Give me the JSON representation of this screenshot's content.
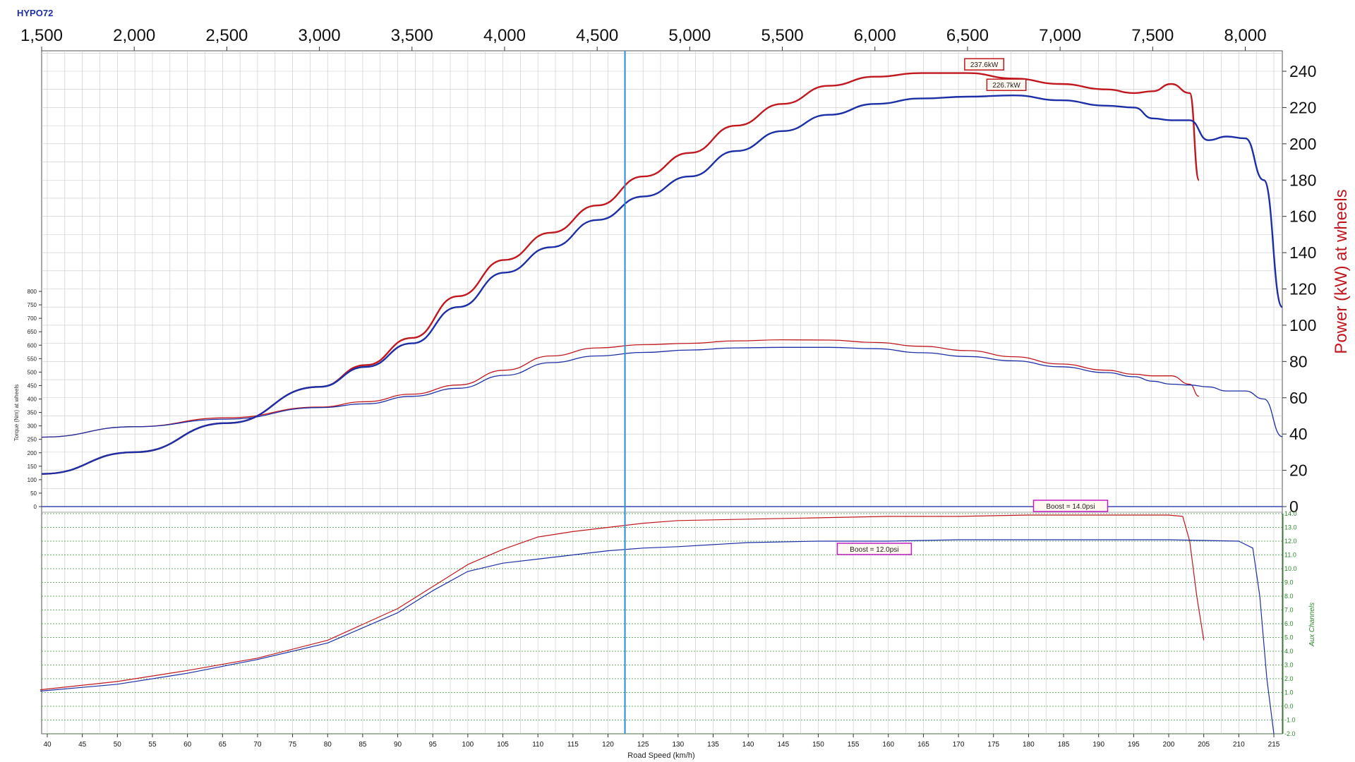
{
  "title": "HYPO72",
  "colors": {
    "run1_red": "#c0181e",
    "run2_blue": "#1c2fa6",
    "cursor": "#2f8fd6",
    "grid": "#c8c8c8",
    "aux_grid": "#3a9a3a",
    "aux_text": "#2a8a2a",
    "peak_red_border": "#c0181e",
    "boost_border": "#c01ec0"
  },
  "chart_data": [
    {
      "type": "line",
      "name": "power",
      "ylabel": "Power (kW) at wheels",
      "ylim": [
        0,
        250
      ],
      "y_ticks": [
        "0",
        "20",
        "40",
        "60",
        "80",
        "100",
        "120",
        "140",
        "160",
        "180",
        "200",
        "220",
        "240"
      ],
      "x_axis_top_label": "",
      "x_ticks_top": [
        "1,500",
        "2,000",
        "2,500",
        "3,000",
        "3,500",
        "4,000",
        "4,500",
        "5,000",
        "5,500",
        "6,000",
        "6,500",
        "7,000",
        "7,500",
        "8,000"
      ],
      "xlim": [
        1500,
        8200
      ],
      "grid": true,
      "series": [
        {
          "color_key": "run1_red",
          "x": [
            1500,
            2000,
            2500,
            3000,
            3250,
            3500,
            3750,
            4000,
            4250,
            4500,
            4750,
            5000,
            5250,
            5500,
            5750,
            6000,
            6250,
            6500,
            6750,
            7000,
            7250,
            7400,
            7500,
            7600,
            7700,
            7750
          ],
          "values": [
            18,
            30,
            46,
            66,
            78,
            93,
            116,
            136,
            151,
            166,
            182,
            195,
            210,
            222,
            232,
            237,
            239,
            239,
            236,
            233,
            230,
            228,
            229,
            233,
            228,
            180
          ]
        },
        {
          "color_key": "run2_blue",
          "x": [
            1500,
            2000,
            2500,
            3000,
            3250,
            3500,
            3750,
            4000,
            4250,
            4500,
            4750,
            5000,
            5250,
            5500,
            5750,
            6000,
            6250,
            6500,
            6750,
            7000,
            7250,
            7400,
            7500,
            7600,
            7700,
            7800,
            7900,
            8000,
            8100,
            8200
          ],
          "values": [
            18,
            30,
            46,
            66,
            77,
            90,
            110,
            129,
            143,
            158,
            171,
            182,
            196,
            207,
            216,
            222,
            225,
            226,
            226.7,
            224,
            221,
            220,
            214,
            213,
            213,
            202,
            204,
            203,
            180,
            110
          ]
        }
      ],
      "annotations": [
        {
          "text": "237.6kW",
          "color_key": "peak_red_border"
        },
        {
          "text": "226.7kW",
          "color_key": "peak_red_border"
        }
      ]
    },
    {
      "type": "line",
      "name": "torque",
      "ylabel": "Torque (Nm) at wheels",
      "ylim": [
        0,
        800
      ],
      "y_ticks": [
        "0",
        "50",
        "100",
        "150",
        "200",
        "250",
        "300",
        "350",
        "400",
        "450",
        "500",
        "550",
        "600",
        "650",
        "700",
        "750",
        "800"
      ],
      "series": [
        {
          "color_key": "run1_red",
          "x": [
            1500,
            2000,
            2500,
            3000,
            3250,
            3500,
            3750,
            4000,
            4250,
            4500,
            4750,
            5000,
            5250,
            5500,
            5750,
            6000,
            6250,
            6500,
            6750,
            7000,
            7250,
            7400,
            7500,
            7600,
            7700,
            7750
          ],
          "values": [
            258,
            297,
            330,
            370,
            390,
            418,
            452,
            507,
            560,
            590,
            602,
            607,
            616,
            620,
            619,
            610,
            596,
            580,
            557,
            530,
            507,
            492,
            486,
            486,
            455,
            410
          ]
        },
        {
          "color_key": "run2_blue",
          "x": [
            1500,
            2000,
            2500,
            3000,
            3250,
            3500,
            3750,
            4000,
            4250,
            4500,
            4750,
            5000,
            5250,
            5500,
            5750,
            6000,
            6250,
            6500,
            6750,
            7000,
            7250,
            7400,
            7500,
            7600,
            7700,
            7800,
            7900,
            8000,
            8100,
            8200
          ],
          "values": [
            258,
            297,
            325,
            368,
            382,
            410,
            440,
            488,
            535,
            560,
            573,
            582,
            590,
            592,
            592,
            587,
            572,
            558,
            542,
            520,
            498,
            483,
            466,
            455,
            452,
            445,
            430,
            430,
            400,
            260
          ]
        }
      ]
    },
    {
      "type": "line",
      "name": "boost",
      "ylabel": "Aux Channels",
      "xlabel": "Road Speed (km/h)",
      "xlim": [
        39,
        216
      ],
      "ylim": [
        -2,
        14
      ],
      "y_ticks": [
        "-2.0",
        "-1.0",
        "0.0",
        "1.0",
        "2.0",
        "3.0",
        "4.0",
        "5.0",
        "6.0",
        "7.0",
        "8.0",
        "9.0",
        "10.0",
        "11.0",
        "12.0",
        "13.0",
        "14.0"
      ],
      "x_ticks_bottom": [
        "40",
        "45",
        "50",
        "55",
        "60",
        "65",
        "70",
        "75",
        "80",
        "85",
        "90",
        "95",
        "100",
        "105",
        "110",
        "115",
        "120",
        "125",
        "130",
        "135",
        "140",
        "145",
        "150",
        "155",
        "160",
        "165",
        "170",
        "175",
        "180",
        "185",
        "190",
        "195",
        "200",
        "205",
        "210",
        "215"
      ],
      "grid": true,
      "series": [
        {
          "color_key": "run1_red",
          "x": [
            39,
            50,
            60,
            70,
            80,
            90,
            95,
            100,
            105,
            110,
            115,
            120,
            125,
            130,
            140,
            150,
            160,
            170,
            180,
            190,
            200,
            202,
            203,
            204,
            205
          ],
          "values": [
            1.2,
            1.8,
            2.6,
            3.5,
            4.8,
            7.1,
            8.7,
            10.3,
            11.4,
            12.3,
            12.7,
            13.0,
            13.3,
            13.5,
            13.6,
            13.7,
            13.8,
            13.8,
            13.9,
            13.9,
            13.9,
            13.8,
            12.0,
            8.0,
            4.8
          ]
        },
        {
          "color_key": "run2_blue",
          "x": [
            39,
            50,
            60,
            70,
            80,
            90,
            95,
            100,
            105,
            110,
            115,
            120,
            125,
            130,
            140,
            150,
            160,
            170,
            180,
            190,
            200,
            210,
            212,
            213,
            214,
            215
          ],
          "values": [
            1.1,
            1.6,
            2.4,
            3.4,
            4.6,
            6.8,
            8.4,
            9.8,
            10.4,
            10.7,
            11.0,
            11.3,
            11.5,
            11.6,
            11.9,
            12.0,
            12.0,
            12.1,
            12.1,
            12.1,
            12.1,
            12.0,
            11.5,
            8.0,
            2.0,
            -2.0
          ]
        }
      ],
      "annotations": [
        {
          "text": "Boost = 14.0psi",
          "color_key": "boost_border"
        },
        {
          "text": "Boost = 12.0psi",
          "color_key": "boost_border"
        }
      ]
    }
  ],
  "cursor": {
    "x_rpm": 4650,
    "x_kmh": 122
  }
}
